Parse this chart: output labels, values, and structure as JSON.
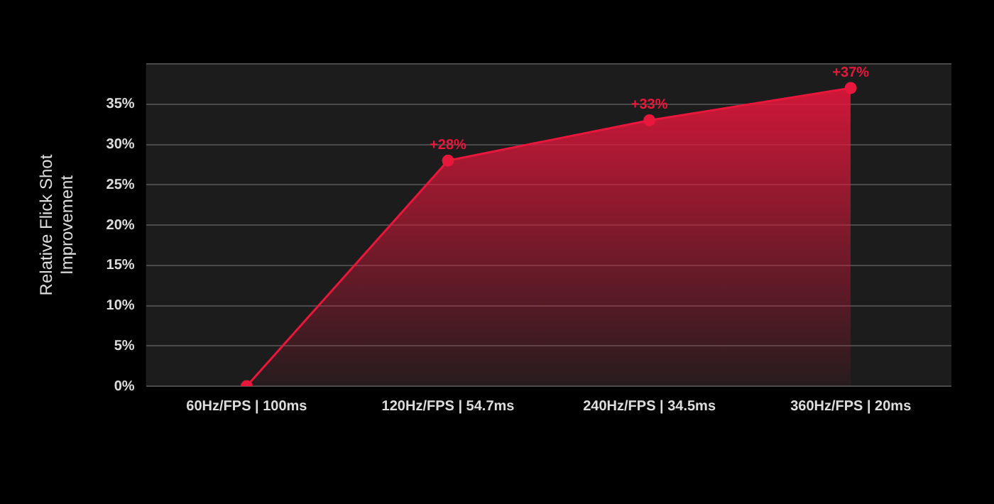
{
  "chart_data": {
    "type": "area",
    "ylabel": "Relative Flick Shot Improvement",
    "categories": [
      "60Hz/FPS | 100ms",
      "120Hz/FPS | 54.7ms",
      "240Hz/FPS | 34.5ms",
      "360Hz/FPS | 20ms"
    ],
    "series": [
      {
        "color": "#e8173c",
        "values": [
          0,
          28,
          33,
          37
        ],
        "value_labels": [
          null,
          "+28%",
          "+33%",
          "+37%"
        ]
      }
    ],
    "ylim": [
      0,
      40
    ],
    "yticks": [
      {
        "value": 0,
        "label": "0%"
      },
      {
        "value": 5,
        "label": "5%"
      },
      {
        "value": 10,
        "label": "10%"
      },
      {
        "value": 15,
        "label": "15%"
      },
      {
        "value": 20,
        "label": "20%"
      },
      {
        "value": 25,
        "label": "25%"
      },
      {
        "value": 30,
        "label": "30%"
      },
      {
        "value": 35,
        "label": "35%"
      },
      {
        "value": 40,
        "label": null
      }
    ],
    "grid": "y",
    "marker": "circle",
    "legend": false
  }
}
